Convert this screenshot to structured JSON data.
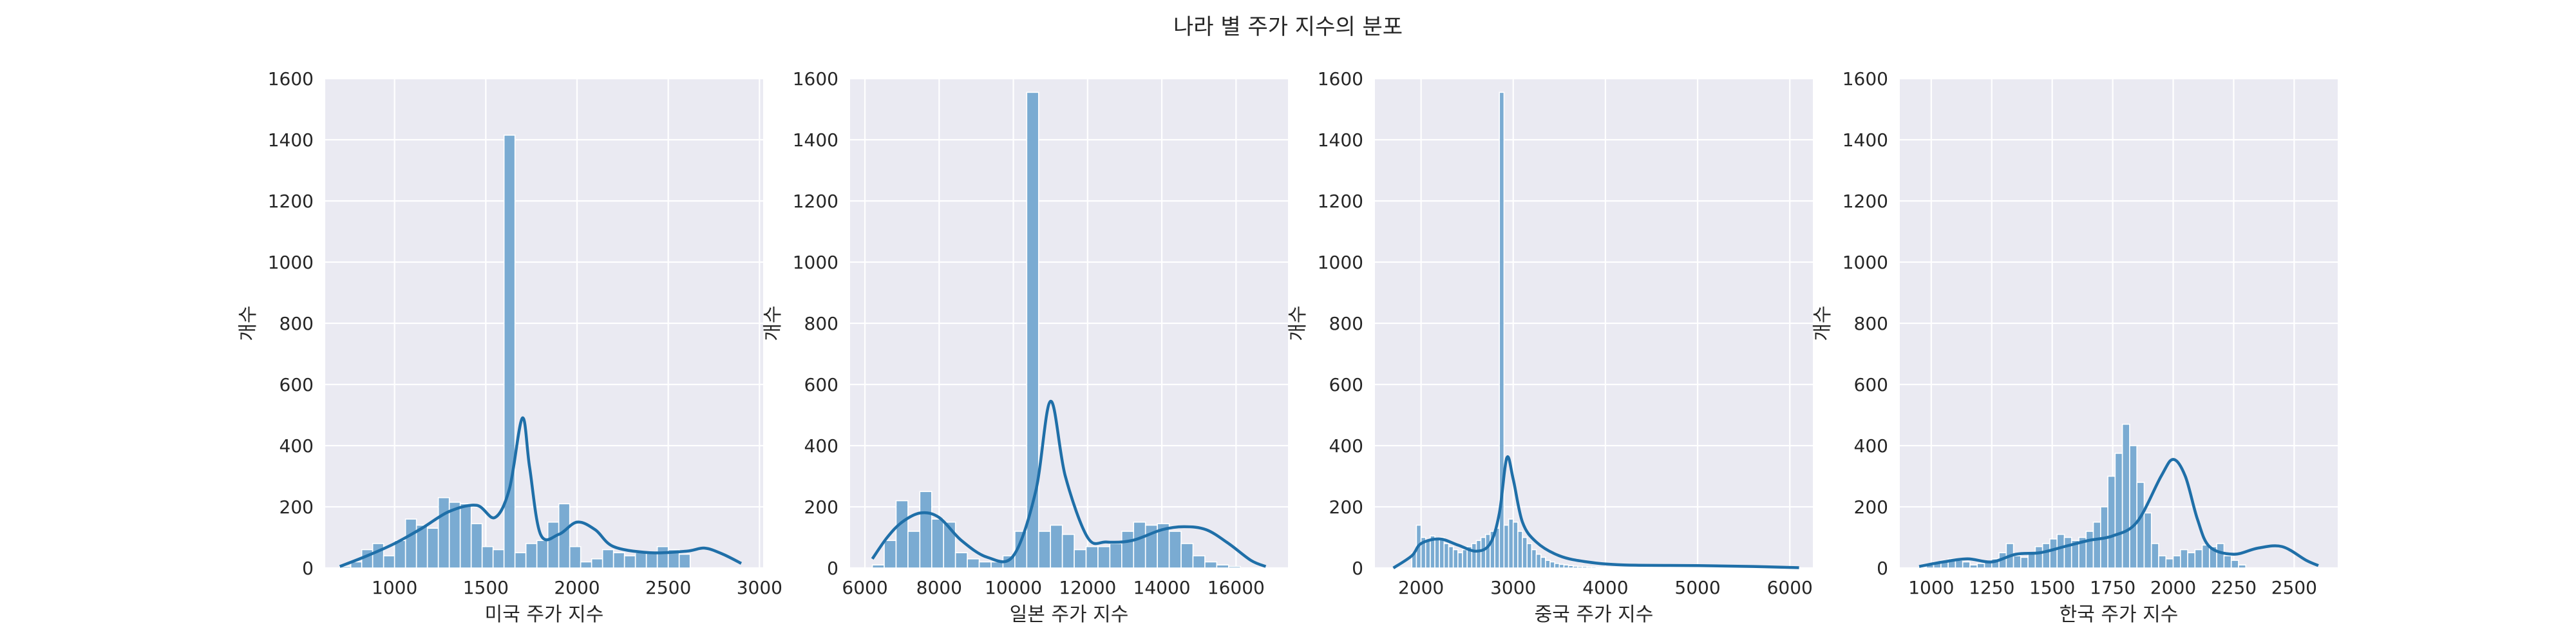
{
  "figure": {
    "title": "나라 별 주가 지수의 분포",
    "style": {
      "bar_color": "#7aabd2",
      "bar_edge": "#ffffff",
      "kde_color": "#1f6fa8",
      "panel_bg": "#eaeaf2",
      "grid_color": "#ffffff",
      "text_color": "#262626"
    }
  },
  "chart_data": [
    {
      "type": "histogram",
      "xlabel": "미국 주가 지수",
      "ylabel": "개수",
      "xlim": [
        620,
        3020
      ],
      "ylim": [
        0,
        1600
      ],
      "xticks": [
        1000,
        1500,
        2000,
        2500,
        3000
      ],
      "yticks": [
        0,
        200,
        400,
        600,
        800,
        1000,
        1200,
        1400,
        1600
      ],
      "grid": true,
      "bin_start": 700,
      "bin_width": 60,
      "counts": [
        5,
        20,
        60,
        80,
        40,
        90,
        160,
        140,
        130,
        230,
        215,
        210,
        145,
        70,
        60,
        1415,
        50,
        80,
        90,
        150,
        210,
        70,
        20,
        30,
        60,
        50,
        40,
        50,
        50,
        70,
        60,
        45
      ],
      "kde": [
        [
          700,
          5
        ],
        [
          850,
          40
        ],
        [
          1000,
          80
        ],
        [
          1150,
          130
        ],
        [
          1300,
          185
        ],
        [
          1450,
          205
        ],
        [
          1550,
          165
        ],
        [
          1630,
          260
        ],
        [
          1700,
          490
        ],
        [
          1740,
          330
        ],
        [
          1800,
          110
        ],
        [
          1900,
          110
        ],
        [
          2000,
          150
        ],
        [
          2100,
          125
        ],
        [
          2200,
          70
        ],
        [
          2400,
          50
        ],
        [
          2600,
          55
        ],
        [
          2700,
          65
        ],
        [
          2800,
          45
        ],
        [
          2900,
          15
        ]
      ]
    },
    {
      "type": "histogram",
      "xlabel": "일본 주가 지수",
      "ylabel": "개수",
      "xlim": [
        5600,
        17400
      ],
      "ylim": [
        0,
        1600
      ],
      "xticks": [
        6000,
        8000,
        10000,
        12000,
        14000,
        16000
      ],
      "yticks": [
        0,
        200,
        400,
        600,
        800,
        1000,
        1200,
        1400,
        1600
      ],
      "grid": true,
      "bin_start": 6200,
      "bin_width": 320,
      "counts": [
        10,
        90,
        220,
        120,
        250,
        160,
        150,
        50,
        30,
        20,
        20,
        40,
        120,
        1555,
        120,
        140,
        110,
        60,
        70,
        70,
        80,
        120,
        150,
        140,
        145,
        120,
        80,
        40,
        20,
        10,
        5
      ],
      "kde": [
        [
          6200,
          30
        ],
        [
          6600,
          100
        ],
        [
          7000,
          150
        ],
        [
          7500,
          180
        ],
        [
          8000,
          165
        ],
        [
          8600,
          90
        ],
        [
          9300,
          35
        ],
        [
          10000,
          40
        ],
        [
          10600,
          250
        ],
        [
          11000,
          545
        ],
        [
          11400,
          300
        ],
        [
          12000,
          100
        ],
        [
          12500,
          85
        ],
        [
          13200,
          90
        ],
        [
          14000,
          125
        ],
        [
          14600,
          135
        ],
        [
          15200,
          125
        ],
        [
          15800,
          80
        ],
        [
          16400,
          25
        ],
        [
          16800,
          5
        ]
      ]
    },
    {
      "type": "histogram",
      "xlabel": "중국 주가 지수",
      "ylabel": "개수",
      "xlim": [
        1500,
        6250
      ],
      "ylim": [
        0,
        1600
      ],
      "xticks": [
        2000,
        3000,
        4000,
        5000,
        6000
      ],
      "yticks": [
        0,
        200,
        400,
        600,
        800,
        1000,
        1200,
        1400,
        1600
      ],
      "grid": true,
      "bin_start": 1900,
      "bin_width": 50,
      "counts": [
        50,
        140,
        100,
        90,
        105,
        95,
        100,
        80,
        70,
        60,
        50,
        60,
        70,
        80,
        90,
        100,
        110,
        120,
        130,
        1555,
        140,
        160,
        150,
        120,
        100,
        80,
        60,
        45,
        35,
        25,
        20,
        15,
        12,
        10,
        8,
        6,
        5,
        5,
        4,
        4,
        3,
        3,
        3,
        3,
        3,
        2,
        2,
        2,
        2,
        2,
        2,
        2,
        2,
        2,
        2,
        2,
        2,
        2,
        2,
        2,
        2,
        2,
        2,
        2,
        2,
        2,
        2,
        2,
        2,
        2,
        2,
        2,
        2,
        2,
        2,
        2,
        2,
        2,
        2,
        2,
        2,
        2,
        1
      ],
      "kde": [
        [
          1700,
          0
        ],
        [
          1900,
          40
        ],
        [
          2000,
          80
        ],
        [
          2200,
          95
        ],
        [
          2400,
          75
        ],
        [
          2600,
          55
        ],
        [
          2750,
          80
        ],
        [
          2850,
          180
        ],
        [
          2930,
          360
        ],
        [
          3000,
          290
        ],
        [
          3100,
          150
        ],
        [
          3250,
          85
        ],
        [
          3500,
          40
        ],
        [
          3800,
          20
        ],
        [
          4200,
          10
        ],
        [
          5000,
          8
        ],
        [
          5600,
          5
        ],
        [
          6100,
          1
        ]
      ]
    },
    {
      "type": "histogram",
      "xlabel": "한국 주가 지수",
      "ylabel": "개수",
      "xlim": [
        870,
        2680
      ],
      "ylim": [
        0,
        1600
      ],
      "xticks": [
        1000,
        1250,
        1500,
        1750,
        2000,
        2250,
        2500
      ],
      "yticks": [
        0,
        200,
        400,
        600,
        800,
        1000,
        1200,
        1400,
        1600
      ],
      "grid": true,
      "bin_start": 950,
      "bin_width": 30,
      "counts": [
        3,
        10,
        20,
        25,
        30,
        25,
        20,
        10,
        15,
        20,
        30,
        50,
        80,
        40,
        35,
        50,
        70,
        80,
        95,
        110,
        100,
        90,
        100,
        120,
        150,
        200,
        300,
        375,
        470,
        400,
        280,
        180,
        80,
        40,
        30,
        40,
        60,
        50,
        60,
        75,
        70,
        80,
        40,
        25,
        10
      ],
      "kde": [
        [
          950,
          5
        ],
        [
          1050,
          20
        ],
        [
          1150,
          30
        ],
        [
          1250,
          20
        ],
        [
          1350,
          45
        ],
        [
          1450,
          50
        ],
        [
          1550,
          70
        ],
        [
          1650,
          90
        ],
        [
          1750,
          105
        ],
        [
          1850,
          150
        ],
        [
          1950,
          300
        ],
        [
          2000,
          355
        ],
        [
          2050,
          300
        ],
        [
          2100,
          160
        ],
        [
          2150,
          70
        ],
        [
          2250,
          45
        ],
        [
          2350,
          65
        ],
        [
          2450,
          70
        ],
        [
          2550,
          25
        ],
        [
          2600,
          8
        ]
      ]
    }
  ]
}
